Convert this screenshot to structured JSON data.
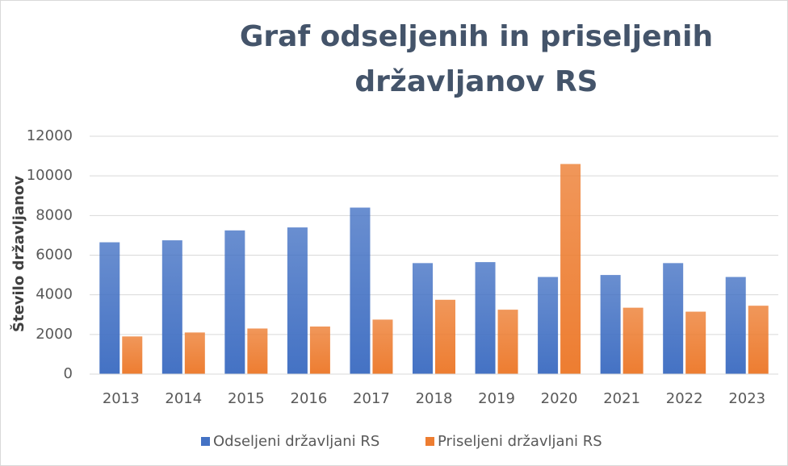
{
  "chart_data": {
    "type": "bar",
    "title": "Graf odseljenih in priseljenih državljanov RS",
    "ylabel": "Število državljanov",
    "categories": [
      "2013",
      "2014",
      "2015",
      "2016",
      "2017",
      "2018",
      "2019",
      "2020",
      "2021",
      "2022",
      "2023"
    ],
    "series": [
      {
        "name": "Odseljeni državljani RS",
        "color": "#4472c4",
        "values": [
          6650,
          6750,
          7250,
          7400,
          8400,
          5600,
          5650,
          4900,
          5000,
          5600,
          4900
        ]
      },
      {
        "name": "Priseljeni državljani RS",
        "color": "#ed7d31",
        "values": [
          1900,
          2100,
          2300,
          2400,
          2750,
          3750,
          3250,
          10600,
          3350,
          3150,
          3450
        ]
      }
    ],
    "ylim": [
      0,
      12000
    ],
    "yticks": [
      0,
      2000,
      4000,
      6000,
      8000,
      10000,
      12000
    ],
    "grid": true,
    "legend": "bottom"
  }
}
